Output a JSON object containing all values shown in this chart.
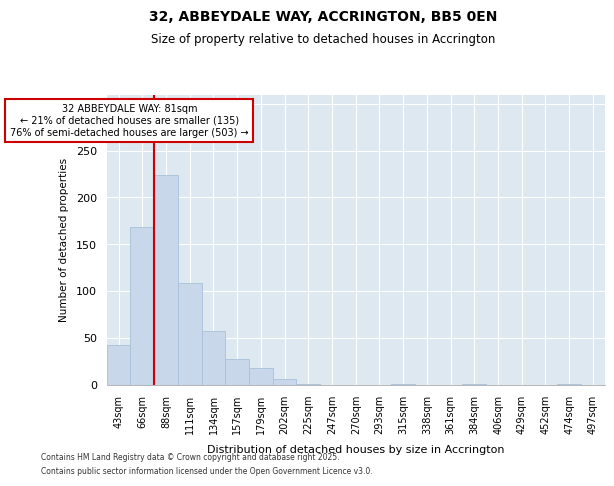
{
  "title": "32, ABBEYDALE WAY, ACCRINGTON, BB5 0EN",
  "subtitle": "Size of property relative to detached houses in Accrington",
  "xlabel": "Distribution of detached houses by size in Accrington",
  "ylabel": "Number of detached properties",
  "categories": [
    "43sqm",
    "66sqm",
    "88sqm",
    "111sqm",
    "134sqm",
    "157sqm",
    "179sqm",
    "202sqm",
    "225sqm",
    "247sqm",
    "270sqm",
    "293sqm",
    "315sqm",
    "338sqm",
    "361sqm",
    "384sqm",
    "406sqm",
    "429sqm",
    "452sqm",
    "474sqm",
    "497sqm"
  ],
  "values": [
    42,
    168,
    224,
    109,
    57,
    27,
    18,
    6,
    1,
    0,
    0,
    0,
    1,
    0,
    0,
    1,
    0,
    0,
    0,
    1,
    0
  ],
  "bar_color": "#c8d8ea",
  "bar_edge_color": "#a8c0d8",
  "vline_x": 1.5,
  "vline_color": "#cc0000",
  "annotation_title": "32 ABBEYDALE WAY: 81sqm",
  "annotation_line1": "← 21% of detached houses are smaller (135)",
  "annotation_line2": "76% of semi-detached houses are larger (503) →",
  "annotation_box_edgecolor": "#cc0000",
  "ylim": [
    0,
    310
  ],
  "yticks": [
    0,
    50,
    100,
    150,
    200,
    250,
    300
  ],
  "fig_bg_color": "#ffffff",
  "plot_bg_color": "#dde8f0",
  "footer1": "Contains HM Land Registry data © Crown copyright and database right 2025.",
  "footer2": "Contains public sector information licensed under the Open Government Licence v3.0."
}
